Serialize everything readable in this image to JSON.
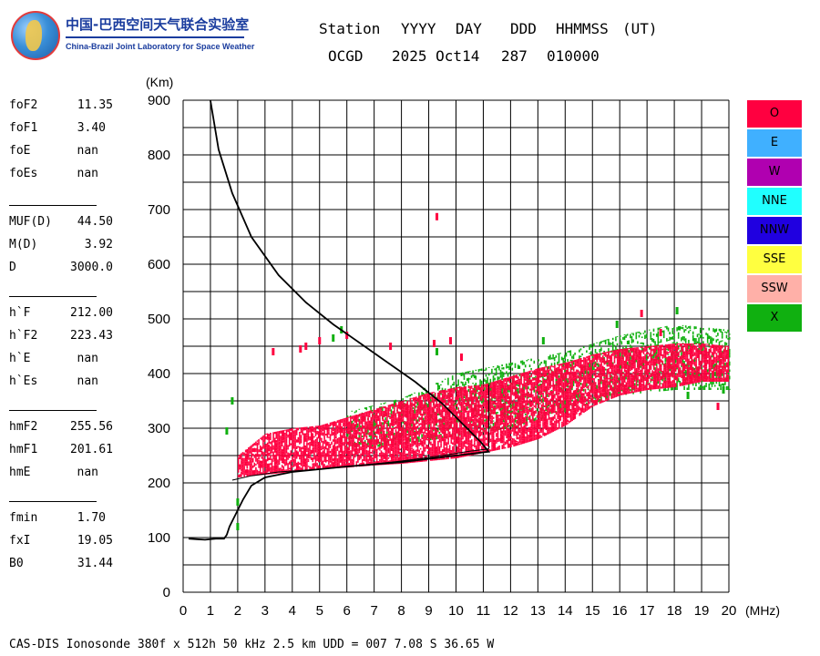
{
  "logo": {
    "name_cn": "中国-巴西空间天气联合实验室",
    "name_en": "China-Brazil Joint Laboratory for Space Weather"
  },
  "header": {
    "labels": [
      "Station",
      "YYYY",
      "DAY",
      "DDD",
      "HHMMSS",
      "(UT)"
    ],
    "values": [
      "OCGD",
      "2025 Oct14",
      "287",
      "010000"
    ]
  },
  "params": [
    {
      "label": "foF2",
      "value": "11.35"
    },
    {
      "label": "foF1",
      "value": "3.40"
    },
    {
      "label": "foE",
      "value": "nan"
    },
    {
      "label": "foEs",
      "value": "nan"
    },
    {
      "label": "MUF(D)",
      "value": "44.50"
    },
    {
      "label": "M(D)",
      "value": "3.92"
    },
    {
      "label": "D",
      "value": "3000.0"
    },
    {
      "label": "h`F",
      "value": "212.00"
    },
    {
      "label": "h`F2",
      "value": "223.43"
    },
    {
      "label": "h`E",
      "value": "nan"
    },
    {
      "label": "h`Es",
      "value": "nan"
    },
    {
      "label": "hmF2",
      "value": "255.56"
    },
    {
      "label": "hmF1",
      "value": "201.61"
    },
    {
      "label": "hmE",
      "value": "nan"
    },
    {
      "label": "fmin",
      "value": "1.70"
    },
    {
      "label": "fxI",
      "value": "19.05"
    },
    {
      "label": "B0",
      "value": "31.44"
    }
  ],
  "legend": [
    {
      "label": "O",
      "color": "#ff0040"
    },
    {
      "label": "E",
      "color": "#40b0ff"
    },
    {
      "label": "W",
      "color": "#b000b0"
    },
    {
      "label": "NNE",
      "color": "#20ffff"
    },
    {
      "label": "NNW",
      "color": "#2000e0"
    },
    {
      "label": "SSE",
      "color": "#ffff40"
    },
    {
      "label": "SSW",
      "color": "#ffb0a8"
    },
    {
      "label": "X",
      "color": "#10b010"
    }
  ],
  "footer": "CAS-DIS Ionosonde 380f x 512h 50 kHz 2.5 km UDD = 007 7.08 S 36.65 W",
  "chart_data": {
    "type": "scatter",
    "ylabel": "(Km)",
    "xlabel": "(MHz)",
    "xlim": [
      0,
      20
    ],
    "ylim": [
      0,
      900
    ],
    "xticks": [
      0,
      1,
      2,
      3,
      4,
      5,
      6,
      7,
      8,
      9,
      10,
      11,
      12,
      13,
      14,
      15,
      16,
      17,
      18,
      19,
      20
    ],
    "yticks": [
      0,
      100,
      200,
      300,
      400,
      500,
      600,
      700,
      800,
      900
    ],
    "grid": true,
    "series": [
      {
        "name": "O",
        "color": "#ff0040",
        "kind": "echo-band",
        "band": [
          {
            "x": 2.0,
            "ymin": 210,
            "ymax": 250
          },
          {
            "x": 3.0,
            "ymin": 215,
            "ymax": 290
          },
          {
            "x": 4.0,
            "ymin": 220,
            "ymax": 300
          },
          {
            "x": 5.0,
            "ymin": 225,
            "ymax": 305
          },
          {
            "x": 6.0,
            "ymin": 228,
            "ymax": 320
          },
          {
            "x": 7.0,
            "ymin": 232,
            "ymax": 335
          },
          {
            "x": 8.0,
            "ymin": 235,
            "ymax": 350
          },
          {
            "x": 9.0,
            "ymin": 240,
            "ymax": 365
          },
          {
            "x": 10.0,
            "ymin": 245,
            "ymax": 375
          },
          {
            "x": 11.0,
            "ymin": 255,
            "ymax": 380
          },
          {
            "x": 12.0,
            "ymin": 265,
            "ymax": 395
          },
          {
            "x": 13.0,
            "ymin": 280,
            "ymax": 410
          },
          {
            "x": 14.0,
            "ymin": 305,
            "ymax": 420
          },
          {
            "x": 15.0,
            "ymin": 340,
            "ymax": 435
          },
          {
            "x": 16.0,
            "ymin": 360,
            "ymax": 445
          },
          {
            "x": 17.0,
            "ymin": 370,
            "ymax": 450
          },
          {
            "x": 18.0,
            "ymin": 375,
            "ymax": 455
          },
          {
            "x": 19.0,
            "ymin": 385,
            "ymax": 455
          },
          {
            "x": 20.0,
            "ymin": 385,
            "ymax": 450
          }
        ],
        "points": [
          [
            9.3,
            687
          ],
          [
            4.3,
            445
          ],
          [
            3.3,
            440
          ],
          [
            4.5,
            450
          ],
          [
            5.0,
            460
          ],
          [
            6.0,
            470
          ],
          [
            9.2,
            455
          ],
          [
            10.2,
            430
          ],
          [
            16.8,
            510
          ],
          [
            17.5,
            475
          ],
          [
            19.6,
            340
          ],
          [
            7.6,
            450
          ],
          [
            9.8,
            460
          ]
        ]
      },
      {
        "name": "X",
        "color": "#10b010",
        "kind": "echo-band",
        "band": [
          {
            "x": 6.0,
            "ymin": 260,
            "ymax": 330
          },
          {
            "x": 8.0,
            "ymin": 270,
            "ymax": 355
          },
          {
            "x": 10.0,
            "ymin": 285,
            "ymax": 400
          },
          {
            "x": 12.0,
            "ymin": 300,
            "ymax": 420
          },
          {
            "x": 14.0,
            "ymin": 330,
            "ymax": 440
          },
          {
            "x": 16.0,
            "ymin": 360,
            "ymax": 470
          },
          {
            "x": 18.0,
            "ymin": 370,
            "ymax": 490
          },
          {
            "x": 20.0,
            "ymin": 370,
            "ymax": 480
          }
        ],
        "points": [
          [
            1.6,
            295
          ],
          [
            1.8,
            350
          ],
          [
            2.0,
            165
          ],
          [
            2.0,
            120
          ],
          [
            5.5,
            465
          ],
          [
            5.8,
            480
          ],
          [
            9.3,
            440
          ],
          [
            15.9,
            490
          ],
          [
            18.1,
            515
          ],
          [
            19.8,
            370
          ],
          [
            18.5,
            360
          ],
          [
            13.2,
            460
          ]
        ]
      }
    ],
    "profile": {
      "name": "true height profile",
      "color": "#000000",
      "points": [
        [
          1.0,
          900
        ],
        [
          1.3,
          810
        ],
        [
          1.8,
          730
        ],
        [
          2.5,
          650
        ],
        [
          3.5,
          580
        ],
        [
          4.5,
          530
        ],
        [
          5.5,
          490
        ],
        [
          6.5,
          455
        ],
        [
          7.5,
          420
        ],
        [
          8.5,
          385
        ],
        [
          9.5,
          345
        ],
        [
          10.3,
          305
        ],
        [
          10.9,
          275
        ],
        [
          11.2,
          257
        ],
        [
          10.0,
          250
        ],
        [
          8.0,
          238
        ],
        [
          6.0,
          230
        ],
        [
          4.0,
          220
        ],
        [
          3.0,
          210
        ],
        [
          2.5,
          195
        ],
        [
          2.2,
          170
        ],
        [
          1.9,
          140
        ],
        [
          1.7,
          120
        ],
        [
          1.6,
          105
        ],
        [
          1.5,
          98
        ],
        [
          1.2,
          98
        ],
        [
          0.8,
          96
        ],
        [
          0.5,
          97
        ],
        [
          0.2,
          98
        ]
      ]
    },
    "trace_line": {
      "name": "h'F trace",
      "color": "#000000",
      "points": [
        [
          1.8,
          205
        ],
        [
          2.5,
          213
        ],
        [
          3.5,
          220
        ],
        [
          5.0,
          225
        ],
        [
          6.5,
          232
        ],
        [
          8.0,
          240
        ],
        [
          9.5,
          250
        ],
        [
          10.5,
          258
        ],
        [
          11.2,
          262
        ]
      ]
    }
  }
}
